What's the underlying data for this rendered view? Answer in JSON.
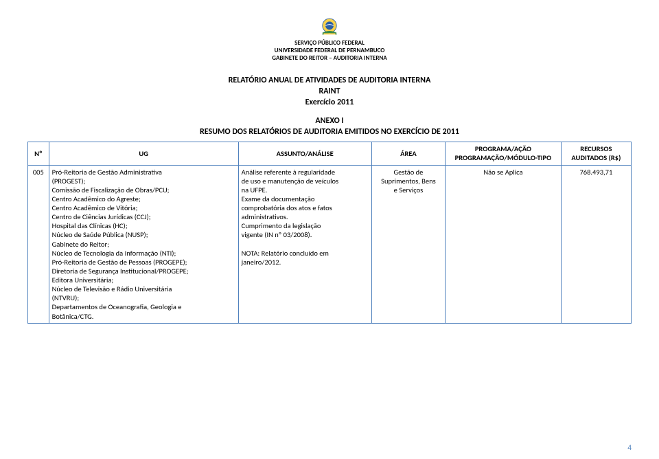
{
  "colors": {
    "border": "#4f81bd",
    "pagenum": "#4f81bd",
    "text": "#000000",
    "background": "#ffffff",
    "emblem_blue": "#2b5fa4",
    "emblem_yellow": "#f8d24a",
    "emblem_green": "#3a8a4b",
    "emblem_band": "#3a63a8"
  },
  "header": {
    "line1": "SERVIÇO PÚBLICO FEDERAL",
    "line2": "UNIVERSIDADE FEDERAL DE PERNAMBUCO",
    "line3": "GABINETE DO REITOR – AUDITORIA INTERNA"
  },
  "title": {
    "line1": "RELATÓRIO ANUAL DE ATIVIDADES DE AUDITORIA INTERNA",
    "line2": "RAINT",
    "line3": "Exercício 2011"
  },
  "annex": {
    "line1": "ANEXO I",
    "line2": "RESUMO DOS RELATÓRIOS DE AUDITORIA EMITIDOS NO EXERCÍCIO DE 2011"
  },
  "table": {
    "columns": {
      "num": "Nº",
      "ug": "UG",
      "assunto": "ASSUNTO/ANÁLISE",
      "area": "ÁREA",
      "programa_l1": "PROGRAMA/AÇÃO",
      "programa_l2": "PROGRAMAÇÃO/MÓDULO-TIPO",
      "recursos_l1": "RECURSOS",
      "recursos_l2": "AUDITADOS (R$)"
    },
    "row": {
      "num": "005",
      "ug_lines": [
        "Pró-Reitoria de Gestão Administrativa",
        "(PROGEST);",
        "Comissão de Fiscalização de Obras/PCU;",
        "Centro Acadêmico do Agreste;",
        "Centro Acadêmico de Vitória;",
        "Centro de Ciências Jurídicas (CCJ);",
        "Hospital das Clínicas (HC);",
        "Núcleo de Saúde Pública (NUSP);",
        "Gabinete do Reitor;",
        "Núcleo de Tecnologia da Informação (NTI);",
        "Pró-Reitoria de Gestão de Pessoas (PROGEPE);",
        "Diretoria de Segurança Institucional/PROGEPE;",
        "Editora Universitária;",
        "Núcleo de Televisão e Rádio Universitária",
        "(NTVRU);",
        "Departamentos de Oceanografia, Geologia e",
        "Botânica/CTG."
      ],
      "assunto_lines": [
        "Análise referente à regularidade",
        "de uso e manutenção de veículos",
        "na UFPE.",
        "Exame da documentação",
        "comprobatória dos atos e fatos",
        "administrativos.",
        "Cumprimento da legislação",
        "vigente (IN nº 03/2008).",
        "",
        "NOTA: Relatório concluído em",
        "janeiro/2012."
      ],
      "area_lines": [
        "Gestão de",
        "Suprimentos, Bens",
        "e Serviços"
      ],
      "programa": "Não se Aplica",
      "recursos": "768.493,71"
    }
  },
  "page_number": "4"
}
